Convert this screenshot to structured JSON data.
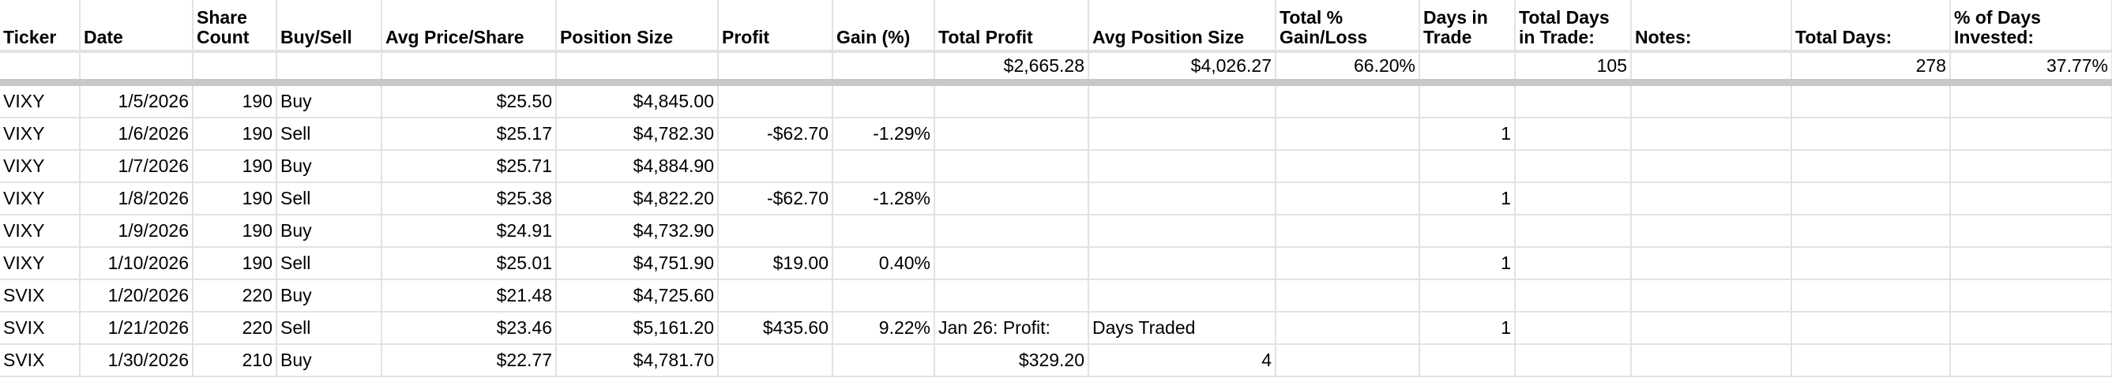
{
  "headers": [
    "Ticker",
    "Date",
    "Share Count",
    "Buy/Sell",
    "Avg Price/Share",
    "Position Size",
    "Profit",
    "Gain (%)",
    "Total Profit",
    "Avg Position Size",
    "Total % Gain/Loss",
    "Days in Trade",
    "Total Days in Trade:",
    "Notes:",
    "Total Days:",
    "% of Days Invested:"
  ],
  "totals": [
    "",
    "",
    "",
    "",
    "",
    "",
    "",
    "",
    "$2,665.28",
    "$4,026.27",
    "66.20%",
    "",
    "105",
    "",
    "278",
    "37.77%"
  ],
  "rows": [
    [
      "VIXY",
      "1/5/2026",
      "190",
      "Buy",
      "$25.50",
      "$4,845.00",
      "",
      "",
      "",
      "",
      "",
      "",
      "",
      "",
      "",
      ""
    ],
    [
      "VIXY",
      "1/6/2026",
      "190",
      "Sell",
      "$25.17",
      "$4,782.30",
      "-$62.70",
      "-1.29%",
      "",
      "",
      "",
      "1",
      "",
      "",
      "",
      ""
    ],
    [
      "VIXY",
      "1/7/2026",
      "190",
      "Buy",
      "$25.71",
      "$4,884.90",
      "",
      "",
      "",
      "",
      "",
      "",
      "",
      "",
      "",
      ""
    ],
    [
      "VIXY",
      "1/8/2026",
      "190",
      "Sell",
      "$25.38",
      "$4,822.20",
      "-$62.70",
      "-1.28%",
      "",
      "",
      "",
      "1",
      "",
      "",
      "",
      ""
    ],
    [
      "VIXY",
      "1/9/2026",
      "190",
      "Buy",
      "$24.91",
      "$4,732.90",
      "",
      "",
      "",
      "",
      "",
      "",
      "",
      "",
      "",
      ""
    ],
    [
      "VIXY",
      "1/10/2026",
      "190",
      "Sell",
      "$25.01",
      "$4,751.90",
      "$19.00",
      "0.40%",
      "",
      "",
      "",
      "1",
      "",
      "",
      "",
      ""
    ],
    [
      "SVIX",
      "1/20/2026",
      "220",
      "Buy",
      "$21.48",
      "$4,725.60",
      "",
      "",
      "",
      "",
      "",
      "",
      "",
      "",
      "",
      ""
    ],
    [
      "SVIX",
      "1/21/2026",
      "220",
      "Sell",
      "$23.46",
      "$5,161.20",
      "$435.60",
      "9.22%",
      "Jan 26: Profit:",
      "Days Traded",
      "",
      "1",
      "",
      "",
      "",
      ""
    ],
    [
      "SVIX",
      "1/30/2026",
      "210",
      "Buy",
      "$22.77",
      "$4,781.70",
      "",
      "",
      "$329.20",
      "4",
      "",
      "",
      "",
      "",
      "",
      ""
    ]
  ]
}
